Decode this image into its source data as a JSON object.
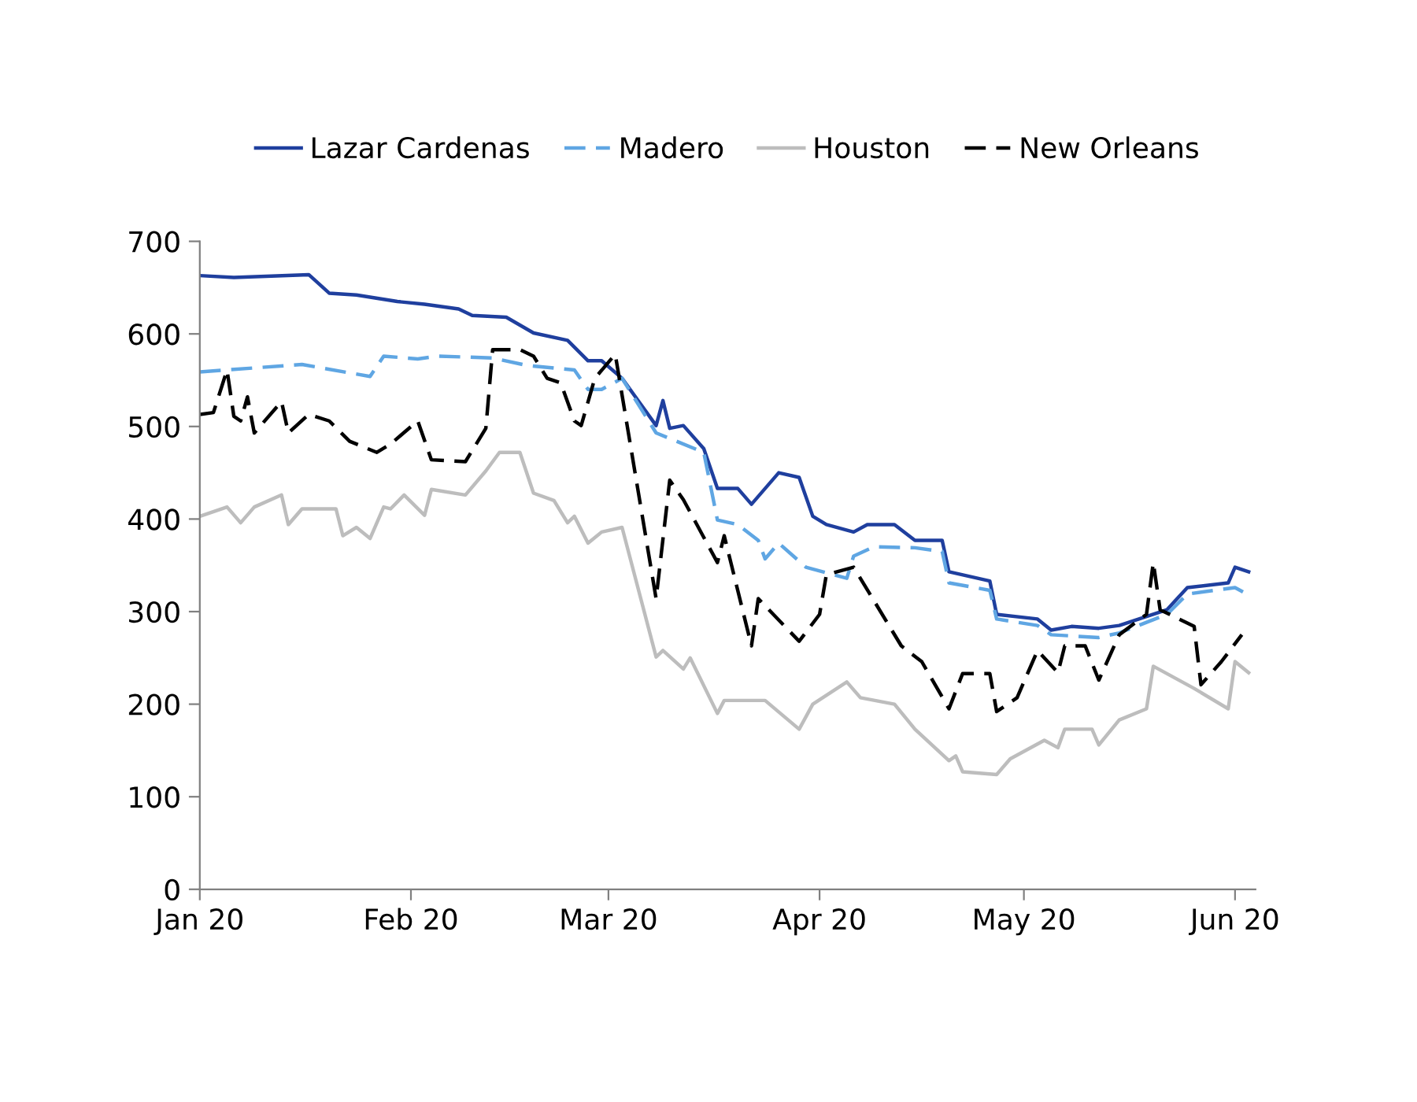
{
  "chart_data": {
    "type": "line",
    "legend": "top",
    "grid": false,
    "marker": "none",
    "xlim": [
      "2020-01-01",
      "2020-06-04"
    ],
    "xticks": [
      {
        "value": "2020-01-01",
        "label": "Jan 20"
      },
      {
        "value": "2020-02-01",
        "label": "Feb 20"
      },
      {
        "value": "2020-03-01",
        "label": "Mar 20"
      },
      {
        "value": "2020-04-01",
        "label": "Apr 20"
      },
      {
        "value": "2020-05-01",
        "label": "May 20"
      },
      {
        "value": "2020-06-01",
        "label": "Jun 20"
      }
    ],
    "ylim": [
      0,
      700
    ],
    "yticks": [
      0,
      100,
      200,
      300,
      400,
      500,
      600,
      700
    ],
    "series": [
      {
        "name": "Lazar Cardenas",
        "color": "#1f3f9e",
        "line_style": "solid",
        "x": [
          "2020-01-01",
          "2020-01-06",
          "2020-01-17",
          "2020-01-20",
          "2020-01-24",
          "2020-01-30",
          "2020-02-03",
          "2020-02-08",
          "2020-02-10",
          "2020-02-15",
          "2020-02-19",
          "2020-02-24",
          "2020-02-27",
          "2020-02-29",
          "2020-03-03",
          "2020-03-08",
          "2020-03-09",
          "2020-03-10",
          "2020-03-12",
          "2020-03-15",
          "2020-03-17",
          "2020-03-20",
          "2020-03-22",
          "2020-03-26",
          "2020-03-29",
          "2020-03-31",
          "2020-04-02",
          "2020-04-06",
          "2020-04-08",
          "2020-04-12",
          "2020-04-15",
          "2020-04-19",
          "2020-04-20",
          "2020-04-26",
          "2020-04-27",
          "2020-05-03",
          "2020-05-05",
          "2020-05-08",
          "2020-05-12",
          "2020-05-15",
          "2020-05-22",
          "2020-05-25",
          "2020-05-31",
          "2020-06-01",
          "2020-06-03"
        ],
        "values": [
          663,
          661,
          664,
          644,
          642,
          635,
          632,
          627,
          620,
          618,
          601,
          593,
          571,
          571,
          552,
          501,
          528,
          498,
          501,
          476,
          433,
          433,
          416,
          450,
          445,
          403,
          394,
          386,
          394,
          394,
          377,
          377,
          343,
          333,
          297,
          292,
          280,
          284,
          282,
          285,
          302,
          326,
          331,
          348,
          343
        ]
      },
      {
        "name": "Madero",
        "color": "#5fa6e3",
        "line_style": "dashed",
        "x": [
          "2020-01-01",
          "2020-01-16",
          "2020-01-26",
          "2020-01-28",
          "2020-02-02",
          "2020-02-05",
          "2020-02-13",
          "2020-02-18",
          "2020-02-25",
          "2020-02-27",
          "2020-02-29",
          "2020-03-03",
          "2020-03-08",
          "2020-03-11",
          "2020-03-15",
          "2020-03-17",
          "2020-03-20",
          "2020-03-23",
          "2020-03-24",
          "2020-03-26",
          "2020-03-30",
          "2020-04-05",
          "2020-04-06",
          "2020-04-09",
          "2020-04-15",
          "2020-04-19",
          "2020-04-20",
          "2020-04-26",
          "2020-04-27",
          "2020-05-03",
          "2020-05-05",
          "2020-05-12",
          "2020-05-15",
          "2020-05-22",
          "2020-05-25",
          "2020-06-01",
          "2020-06-03"
        ],
        "values": [
          559,
          567,
          554,
          576,
          573,
          576,
          574,
          566,
          561,
          540,
          540,
          552,
          493,
          484,
          472,
          399,
          394,
          377,
          357,
          374,
          348,
          336,
          360,
          370,
          369,
          365,
          331,
          323,
          292,
          285,
          275,
          272,
          277,
          297,
          319,
          326,
          318
        ]
      },
      {
        "name": "Houston",
        "color": "#bdbdbd",
        "line_style": "solid",
        "x": [
          "2020-01-01",
          "2020-01-05",
          "2020-01-07",
          "2020-01-09",
          "2020-01-13",
          "2020-01-14",
          "2020-01-16",
          "2020-01-21",
          "2020-01-22",
          "2020-01-24",
          "2020-01-26",
          "2020-01-28",
          "2020-01-29",
          "2020-01-31",
          "2020-02-03",
          "2020-02-04",
          "2020-02-09",
          "2020-02-12",
          "2020-02-14",
          "2020-02-17",
          "2020-02-19",
          "2020-02-22",
          "2020-02-24",
          "2020-02-25",
          "2020-02-27",
          "2020-02-29",
          "2020-03-03",
          "2020-03-08",
          "2020-03-09",
          "2020-03-12",
          "2020-03-13",
          "2020-03-17",
          "2020-03-18",
          "2020-03-24",
          "2020-03-29",
          "2020-03-31",
          "2020-04-05",
          "2020-04-07",
          "2020-04-12",
          "2020-04-15",
          "2020-04-20",
          "2020-04-21",
          "2020-04-22",
          "2020-04-27",
          "2020-04-29",
          "2020-05-04",
          "2020-05-06",
          "2020-05-07",
          "2020-05-11",
          "2020-05-12",
          "2020-05-15",
          "2020-05-19",
          "2020-05-20",
          "2020-05-26",
          "2020-05-31",
          "2020-06-01",
          "2020-06-03"
        ],
        "values": [
          403,
          413,
          396,
          413,
          426,
          394,
          411,
          411,
          382,
          391,
          379,
          413,
          411,
          426,
          404,
          432,
          426,
          452,
          472,
          472,
          428,
          420,
          396,
          403,
          374,
          386,
          391,
          251,
          258,
          238,
          250,
          190,
          204,
          204,
          173,
          200,
          224,
          207,
          200,
          173,
          139,
          144,
          127,
          124,
          141,
          161,
          153,
          173,
          173,
          156,
          183,
          195,
          241,
          217,
          195,
          246,
          234
        ]
      },
      {
        "name": "New Orleans",
        "color": "#000000",
        "line_style": "dashed",
        "x": [
          "2020-01-01",
          "2020-01-03",
          "2020-01-05",
          "2020-01-06",
          "2020-01-07",
          "2020-01-08",
          "2020-01-09",
          "2020-01-13",
          "2020-01-14",
          "2020-01-17",
          "2020-01-20",
          "2020-01-23",
          "2020-01-27",
          "2020-01-29",
          "2020-02-02",
          "2020-02-04",
          "2020-02-09",
          "2020-02-12",
          "2020-02-13",
          "2020-02-17",
          "2020-02-19",
          "2020-02-21",
          "2020-02-23",
          "2020-02-25",
          "2020-02-26",
          "2020-02-28",
          "2020-03-02",
          "2020-03-08",
          "2020-03-10",
          "2020-03-12",
          "2020-03-17",
          "2020-03-18",
          "2020-03-22",
          "2020-03-23",
          "2020-03-29",
          "2020-04-01",
          "2020-04-02",
          "2020-04-06",
          "2020-04-13",
          "2020-04-16",
          "2020-04-20",
          "2020-04-22",
          "2020-04-26",
          "2020-04-27",
          "2020-04-30",
          "2020-05-03",
          "2020-05-06",
          "2020-05-07",
          "2020-05-10",
          "2020-05-12",
          "2020-05-15",
          "2020-05-19",
          "2020-05-20",
          "2020-05-21",
          "2020-05-26",
          "2020-05-27",
          "2020-05-30",
          "2020-06-02"
        ],
        "values": [
          513,
          515,
          561,
          511,
          506,
          532,
          493,
          527,
          493,
          513,
          506,
          484,
          472,
          481,
          506,
          464,
          462,
          498,
          583,
          583,
          576,
          552,
          547,
          506,
          501,
          552,
          578,
          314,
          442,
          421,
          353,
          382,
          263,
          314,
          268,
          297,
          340,
          348,
          263,
          246,
          195,
          233,
          233,
          192,
          207,
          258,
          234,
          263,
          263,
          226,
          275,
          297,
          353,
          302,
          284,
          221,
          246,
          275
        ]
      }
    ]
  }
}
